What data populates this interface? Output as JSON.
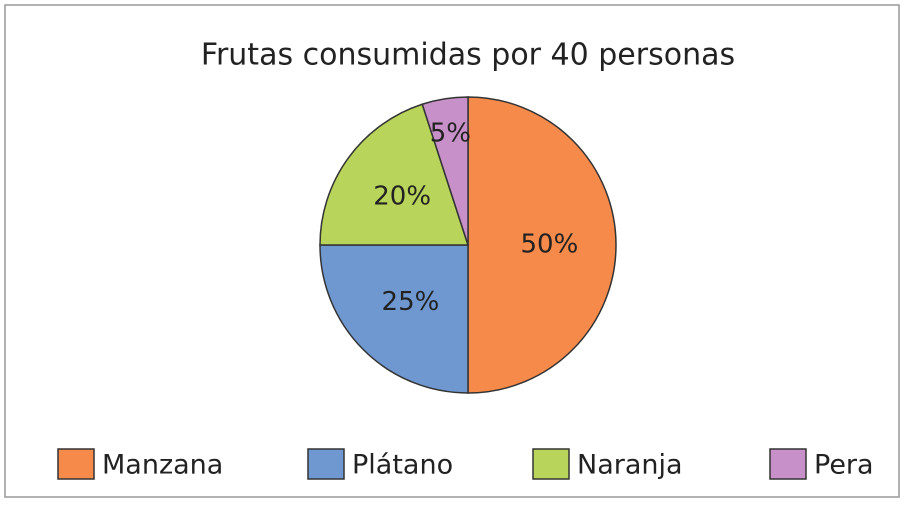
{
  "chart_data": {
    "type": "pie",
    "title": "Frutas consumidas por 40 personas",
    "categories": [
      "Manzana",
      "Plátano",
      "Naranja",
      "Pera"
    ],
    "values": [
      50,
      25,
      20,
      5
    ],
    "value_labels": [
      "50%",
      "25%",
      "20%",
      "5%"
    ],
    "colors": [
      "#f58a4b",
      "#6f98d0",
      "#b8d45a",
      "#c890c8"
    ],
    "legend": "bottom"
  }
}
